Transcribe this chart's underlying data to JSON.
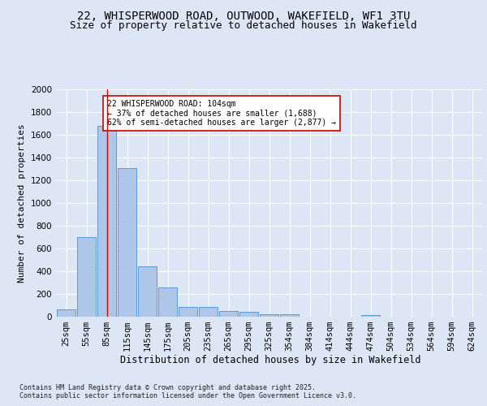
{
  "title_line1": "22, WHISPERWOOD ROAD, OUTWOOD, WAKEFIELD, WF1 3TU",
  "title_line2": "Size of property relative to detached houses in Wakefield",
  "xlabel": "Distribution of detached houses by size in Wakefield",
  "ylabel": "Number of detached properties",
  "categories": [
    "25sqm",
    "55sqm",
    "85sqm",
    "115sqm",
    "145sqm",
    "175sqm",
    "205sqm",
    "235sqm",
    "265sqm",
    "295sqm",
    "325sqm",
    "354sqm",
    "384sqm",
    "414sqm",
    "444sqm",
    "474sqm",
    "504sqm",
    "534sqm",
    "564sqm",
    "594sqm",
    "624sqm"
  ],
  "values": [
    65,
    700,
    1680,
    1310,
    445,
    255,
    85,
    85,
    50,
    40,
    25,
    25,
    0,
    0,
    0,
    15,
    0,
    0,
    0,
    0,
    0
  ],
  "bar_color": "#aec6e8",
  "bar_edge_color": "#5b9bd5",
  "ylim": [
    0,
    2000
  ],
  "yticks": [
    0,
    200,
    400,
    600,
    800,
    1000,
    1200,
    1400,
    1600,
    1800,
    2000
  ],
  "vline_x": 2,
  "annotation_text": "22 WHISPERWOOD ROAD: 104sqm\n← 37% of detached houses are smaller (1,688)\n62% of semi-detached houses are larger (2,877) →",
  "annotation_box_color": "#ffffff",
  "annotation_box_edge": "#cc0000",
  "vline_color": "#cc0000",
  "footer_line1": "Contains HM Land Registry data © Crown copyright and database right 2025.",
  "footer_line2": "Contains public sector information licensed under the Open Government Licence v3.0.",
  "background_color": "#dce6f5",
  "grid_color": "#ffffff",
  "title_fontsize": 10,
  "subtitle_fontsize": 9,
  "axis_label_fontsize": 8.5,
  "tick_fontsize": 7.5,
  "footer_fontsize": 6,
  "annotation_fontsize": 7,
  "ylabel_fontsize": 8
}
